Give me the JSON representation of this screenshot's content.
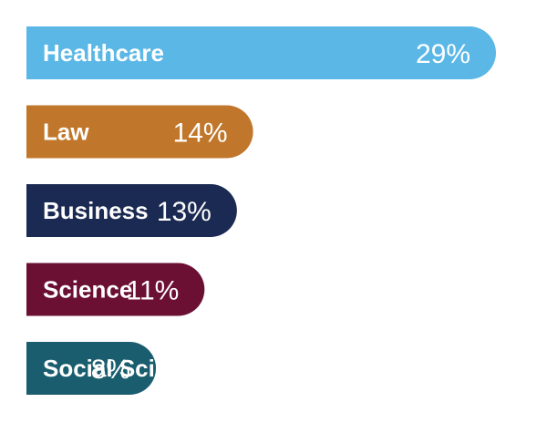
{
  "chart_data": {
    "type": "bar",
    "orientation": "horizontal",
    "categories": [
      "Healthcare",
      "Law",
      "Business",
      "Science",
      "Social Sciences"
    ],
    "values": [
      29,
      14,
      13,
      11,
      8
    ],
    "value_labels": [
      "29%",
      "14%",
      "13%",
      "11%",
      "8%"
    ],
    "unit": "%",
    "colors": [
      "#5bb7e6",
      "#c1772b",
      "#1b2a52",
      "#6b0f33",
      "#1a5d6e"
    ],
    "title": "",
    "xlabel": "",
    "ylabel": "",
    "grid": false,
    "legend": "none"
  }
}
